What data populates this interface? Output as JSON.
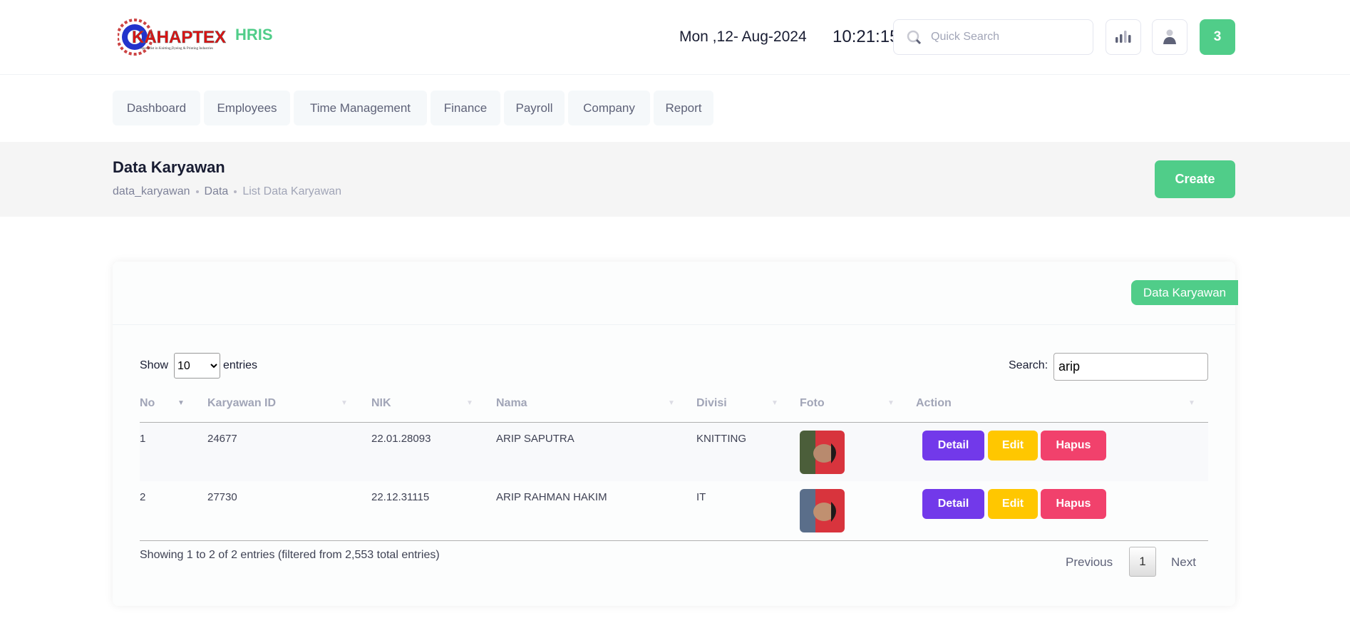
{
  "header": {
    "logo_text": "KAHAPTEX",
    "logo_tagline": "Specialist in Knitting,Dyeing & Printing Industries",
    "app_name": "HRIS",
    "date": "Mon ,12- Aug-2024",
    "time": "10:21:15",
    "search_placeholder": "Quick Search",
    "notification_count": "3",
    "icons": [
      "search-icon",
      "bar-chart-icon",
      "user-icon"
    ]
  },
  "nav": [
    "Dashboard",
    "Employees",
    "Time Management",
    "Finance",
    "Payroll",
    "Company",
    "Report"
  ],
  "page": {
    "title": "Data Karyawan",
    "breadcrumb": [
      "data_karyawan",
      "Data",
      "List Data Karyawan"
    ],
    "create_label": "Create"
  },
  "card": {
    "badge": "Data Karyawan",
    "show_label": "Show",
    "entries_label": "entries",
    "page_length": "10",
    "search_label": "Search:",
    "search_value": "arip",
    "columns": [
      "No",
      "Karyawan ID",
      "NIK",
      "Nama",
      "Divisi",
      "Foto",
      "Action"
    ],
    "rows": [
      {
        "no": "1",
        "id": "24677",
        "nik": "22.01.28093",
        "nama": "ARIP SAPUTRA",
        "divisi": "KNITTING"
      },
      {
        "no": "2",
        "id": "27730",
        "nik": "22.12.31115",
        "nama": "ARIP RAHMAN HAKIM",
        "divisi": "IT"
      }
    ],
    "actions": {
      "detail": "Detail",
      "edit": "Edit",
      "hapus": "Hapus"
    },
    "info": "Showing 1 to 2 of 2 entries (filtered from 2,553 total entries)",
    "pagination": {
      "previous": "Previous",
      "current": "1",
      "next": "Next"
    }
  },
  "colors": {
    "accent": "#50cd89",
    "detail": "#7239ea",
    "edit": "#ffc700",
    "hapus": "#f1416c"
  }
}
